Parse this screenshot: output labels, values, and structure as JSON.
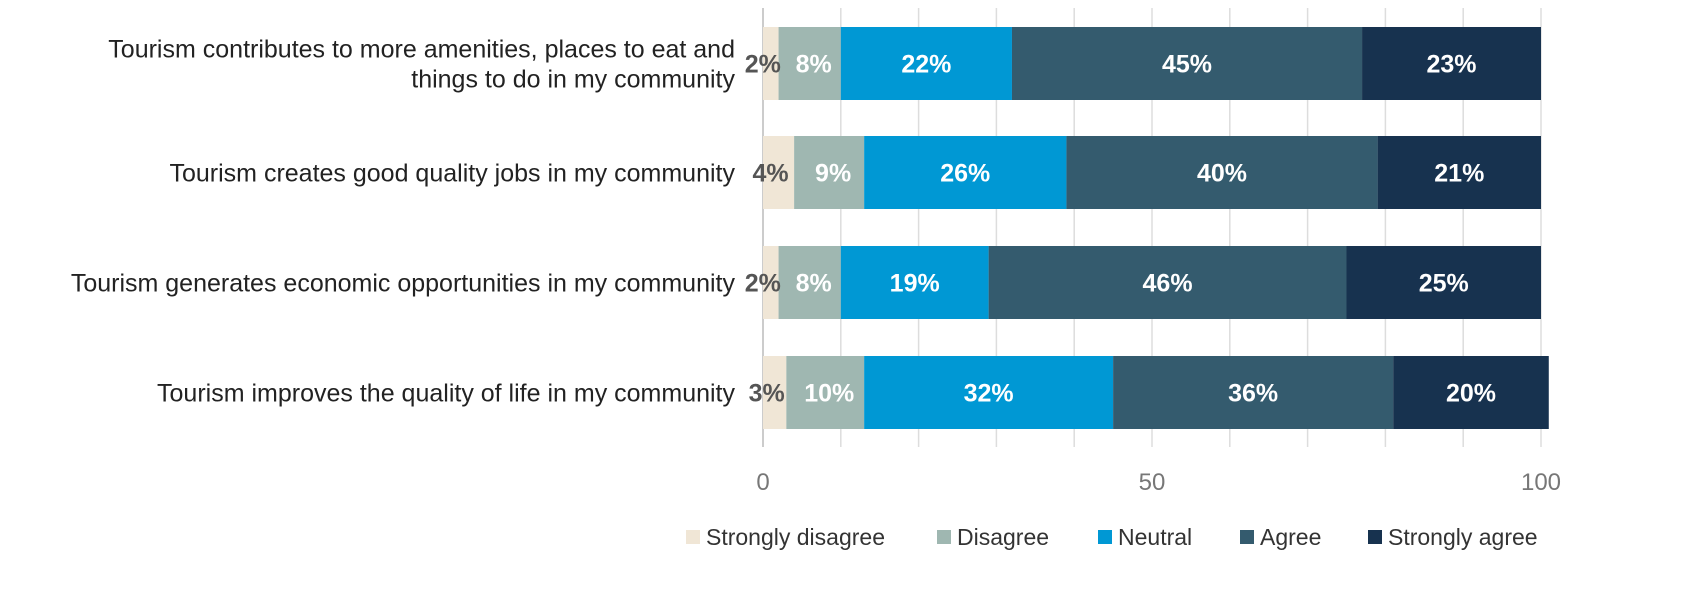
{
  "colors": {
    "strongly_disagree": "#f0e6d6",
    "disagree": "#9fb7b1",
    "neutral": "#0098d4",
    "agree": "#345b6e",
    "strongly_agree": "#17324f",
    "grid": "#dddddd"
  },
  "chart_data": {
    "type": "bar",
    "orientation": "horizontal",
    "stacked": true,
    "categories": [
      [
        "Tourism contributes to more amenities, places to eat and",
        "things to do in my community"
      ],
      [
        "Tourism creates good quality jobs in my community"
      ],
      [
        "Tourism generates economic opportunities in my community"
      ],
      [
        "Tourism improves the quality of life in my community"
      ]
    ],
    "series": [
      {
        "name": "Strongly disagree",
        "color_key": "strongly_disagree",
        "values": [
          2,
          4,
          2,
          3
        ],
        "labels": [
          "2%",
          "4%",
          "2%",
          "3%"
        ]
      },
      {
        "name": "Disagree",
        "color_key": "disagree",
        "values": [
          8,
          9,
          8,
          10
        ],
        "labels": [
          "8%",
          "9%",
          "8%",
          "10%"
        ]
      },
      {
        "name": "Neutral",
        "color_key": "neutral",
        "values": [
          22,
          26,
          19,
          32
        ],
        "labels": [
          "22%",
          "26%",
          "19%",
          "32%"
        ]
      },
      {
        "name": "Agree",
        "color_key": "agree",
        "values": [
          45,
          40,
          46,
          36
        ],
        "labels": [
          "45%",
          "40%",
          "46%",
          "36%"
        ]
      },
      {
        "name": "Strongly agree",
        "color_key": "strongly_agree",
        "values": [
          23,
          21,
          25,
          20
        ],
        "labels": [
          "23%",
          "21%",
          "25%",
          "20%"
        ]
      }
    ],
    "xlim": [
      0,
      100
    ],
    "xticks": [
      0,
      50,
      100
    ],
    "xtick_labels": [
      "0",
      "50",
      "100"
    ],
    "grid": true,
    "legend_position": "bottom"
  }
}
